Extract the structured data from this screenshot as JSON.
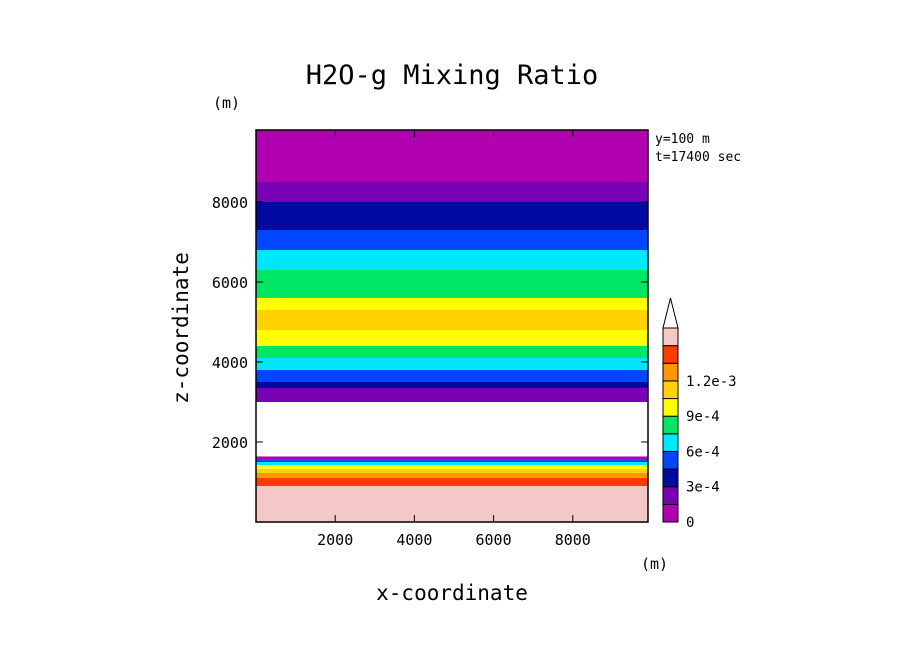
{
  "chart_data": {
    "type": "heatmap",
    "title": "H2O-g Mixing Ratio",
    "xlabel": "x-coordinate",
    "ylabel": "z-coordinate",
    "x_unit": "(m)",
    "y_unit": "(m)",
    "annotation_lines": [
      "y=100 m",
      "t=17400 sec"
    ],
    "xlim": [
      0,
      9900
    ],
    "ylim": [
      0,
      9800
    ],
    "x_ticks": [
      2000,
      4000,
      6000,
      8000
    ],
    "x_tick_labels": [
      "2000",
      "4000",
      "6000",
      "8000"
    ],
    "y_ticks": [
      2000,
      4000,
      6000,
      8000
    ],
    "y_tick_labels": [
      "2000",
      "4000",
      "6000",
      "8000"
    ],
    "colorbar": {
      "levels": [
        0,
        0.00015,
        0.0003,
        0.00045,
        0.0006,
        0.00075,
        0.0009,
        0.00105,
        0.0012
      ],
      "tick_values": [
        0,
        0.0003,
        0.0006,
        0.0009,
        0.0012
      ],
      "tick_labels": [
        "0",
        "3e-4",
        "6e-4",
        "9e-4",
        "1.2e-3"
      ],
      "extend": "max",
      "colors": [
        "#b000b0",
        "#7a00b4",
        "#000aa0",
        "#0046ff",
        "#00e6ff",
        "#00e664",
        "#ffff00",
        "#ffd200",
        "#ff9600",
        "#ff3c00",
        "#f5c8c8"
      ]
    },
    "layers": [
      {
        "z": [
          0,
          900
        ],
        "color_index": 10
      },
      {
        "z": [
          900,
          1100
        ],
        "color_index": 9
      },
      {
        "z": [
          1100,
          1230
        ],
        "color_index": 8
      },
      {
        "z": [
          1230,
          1330
        ],
        "color_index": 7
      },
      {
        "z": [
          1330,
          1420
        ],
        "color_index": 6
      },
      {
        "z": [
          1420,
          1500
        ],
        "color_index": 4
      },
      {
        "z": [
          1500,
          1560
        ],
        "color_index": 3
      },
      {
        "z": [
          1560,
          1640
        ],
        "color_index": 0
      },
      {
        "z": [
          1640,
          3000
        ],
        "color": "#ffffff"
      },
      {
        "z": [
          3000,
          3350
        ],
        "color_index": 1
      },
      {
        "z": [
          3350,
          3500
        ],
        "color_index": 2
      },
      {
        "z": [
          3500,
          3800
        ],
        "color_index": 3
      },
      {
        "z": [
          3800,
          4100
        ],
        "color_index": 4
      },
      {
        "z": [
          4100,
          4400
        ],
        "color_index": 5
      },
      {
        "z": [
          4400,
          4800
        ],
        "color_index": 6
      },
      {
        "z": [
          4800,
          5300
        ],
        "color_index": 7
      },
      {
        "z": [
          5300,
          5600
        ],
        "color_index": 6
      },
      {
        "z": [
          5600,
          6300
        ],
        "color_index": 5
      },
      {
        "z": [
          6300,
          6800
        ],
        "color_index": 4
      },
      {
        "z": [
          6800,
          7300
        ],
        "color_index": 3
      },
      {
        "z": [
          7300,
          8000
        ],
        "color_index": 2
      },
      {
        "z": [
          8000,
          8500
        ],
        "color_index": 1
      },
      {
        "z": [
          8500,
          9800
        ],
        "color_index": 0
      }
    ]
  }
}
